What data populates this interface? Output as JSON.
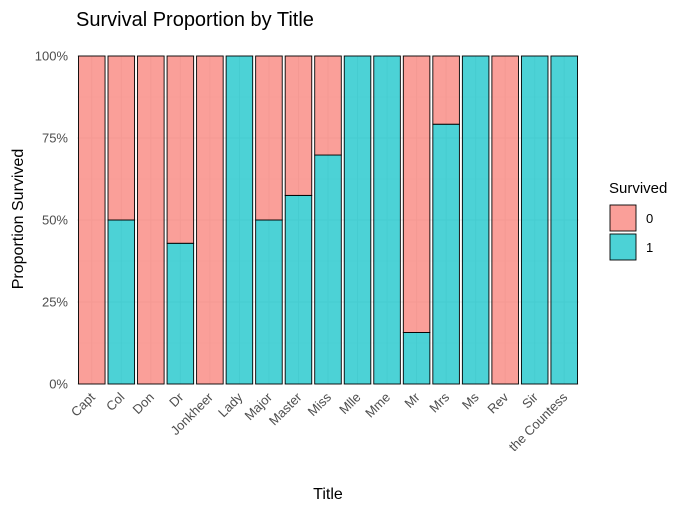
{
  "chart_data": {
    "type": "bar",
    "stacked": true,
    "title": "Survival Proportion by Title",
    "xlabel": "Title",
    "ylabel": "Proportion Survived",
    "ylim": [
      0,
      1
    ],
    "y_ticks": [
      {
        "value": 0,
        "label": "0%"
      },
      {
        "value": 0.25,
        "label": "25%"
      },
      {
        "value": 0.5,
        "label": "50%"
      },
      {
        "value": 0.75,
        "label": "75%"
      },
      {
        "value": 1,
        "label": "100%"
      }
    ],
    "grid": true,
    "legend": {
      "title": "Survived",
      "position": "right"
    },
    "categories": [
      "Capt",
      "Col",
      "Don",
      "Dr",
      "Jonkheer",
      "Lady",
      "Major",
      "Master",
      "Miss",
      "Mlle",
      "Mme",
      "Mr",
      "Mrs",
      "Ms",
      "Rev",
      "Sir",
      "the Countess"
    ],
    "series": [
      {
        "name": "0",
        "color": "#F8766D",
        "values": [
          1.0,
          0.5,
          1.0,
          0.571,
          1.0,
          0.0,
          0.5,
          0.425,
          0.302,
          0.0,
          0.0,
          0.843,
          0.208,
          0.0,
          1.0,
          0.0,
          0.0
        ]
      },
      {
        "name": "1",
        "color": "#00BFC4",
        "values": [
          0.0,
          0.5,
          0.0,
          0.429,
          0.0,
          1.0,
          0.5,
          0.575,
          0.698,
          1.0,
          1.0,
          0.157,
          0.792,
          1.0,
          0.0,
          1.0,
          1.0
        ]
      }
    ]
  }
}
